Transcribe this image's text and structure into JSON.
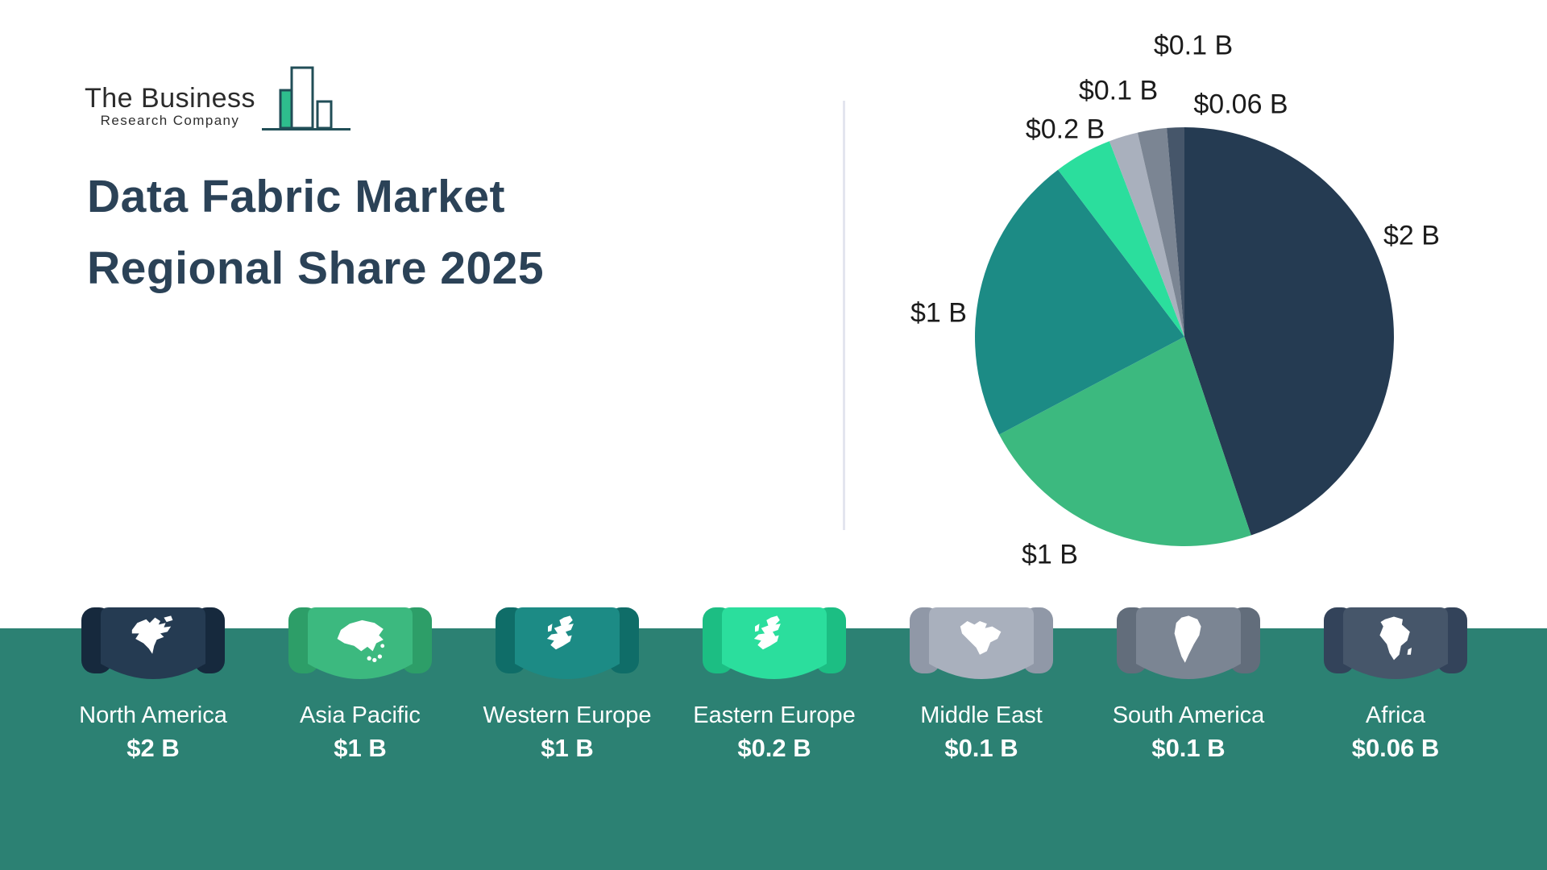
{
  "logo": {
    "line1": "The Business",
    "line2": "Research Company"
  },
  "title": {
    "line1": "Data Fabric Market",
    "line2": "Regional Share 2025"
  },
  "divider_color": "#E3E5EF",
  "band_color": "#2C8173",
  "chart_data": {
    "type": "pie",
    "title": "Data Fabric Market Regional Share 2025",
    "unit": "USD billions",
    "legend_position": "bottom",
    "start_angle_deg": 0,
    "direction": "clockwise",
    "slices": [
      {
        "key": "north-america",
        "label": "North America",
        "value": 2,
        "display": "$2 B",
        "color": "#253B52",
        "ribbon_dark": "#16293D"
      },
      {
        "key": "asia-pacific",
        "label": "Asia Pacific",
        "value": 1,
        "display": "$1 B",
        "color": "#3CB97F",
        "ribbon_dark": "#2D9E68"
      },
      {
        "key": "western-europe",
        "label": "Western Europe",
        "value": 1,
        "display": "$1 B",
        "color": "#1C8B85",
        "ribbon_dark": "#0F6D68"
      },
      {
        "key": "eastern-europe",
        "label": "Eastern Europe",
        "value": 0.2,
        "display": "$0.2 B",
        "color": "#2BDE9D",
        "ribbon_dark": "#1CBE83"
      },
      {
        "key": "middle-east",
        "label": "Middle East",
        "value": 0.1,
        "display": "$0.1 B",
        "color": "#A9B0BD",
        "ribbon_dark": "#9098A7"
      },
      {
        "key": "south-america",
        "label": "South America",
        "value": 0.1,
        "display": "$0.1 B",
        "color": "#7B8593",
        "ribbon_dark": "#626D7B"
      },
      {
        "key": "africa",
        "label": "Africa",
        "value": 0.06,
        "display": "$0.06 B",
        "color": "#46566A",
        "ribbon_dark": "#33435A"
      }
    ]
  }
}
